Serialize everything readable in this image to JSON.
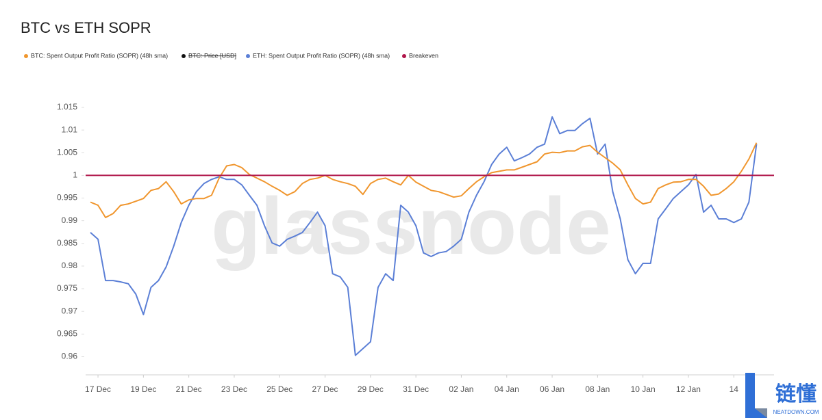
{
  "chart_data": {
    "type": "line",
    "title": "BTC vs ETH SOPR",
    "watermark": "glassnode",
    "logo": {
      "text": "链懂",
      "subtext": "NEATDOWN.COM"
    },
    "categories": [
      null,
      "17 Dec",
      null,
      null,
      null,
      null,
      null,
      "19 Dec",
      null,
      null,
      null,
      null,
      null,
      "21 Dec",
      null,
      null,
      null,
      null,
      null,
      "23 Dec",
      null,
      null,
      null,
      null,
      null,
      "25 Dec",
      null,
      null,
      null,
      null,
      null,
      "27 Dec",
      null,
      null,
      null,
      null,
      null,
      "29 Dec",
      null,
      null,
      null,
      null,
      null,
      "31 Dec",
      null,
      null,
      null,
      null,
      null,
      "02 Jan",
      null,
      null,
      null,
      null,
      null,
      "04 Jan",
      null,
      null,
      null,
      null,
      null,
      "06 Jan",
      null,
      null,
      null,
      null,
      null,
      "08 Jan",
      null,
      null,
      null,
      null,
      null,
      "10 Jan",
      null,
      null,
      null,
      null,
      null,
      "12 Jan",
      null,
      null,
      null,
      null,
      null,
      "14",
      null,
      null,
      null
    ],
    "series": [
      {
        "name": "BTC: Spent Output Profit Ratio (SOPR) (48h sma)",
        "color": "#f0962e",
        "values": [
          0.9941,
          0.9934,
          0.9907,
          0.9916,
          0.9934,
          0.9937,
          0.9943,
          0.9949,
          0.9967,
          0.9971,
          0.9986,
          0.9964,
          0.9937,
          0.9946,
          0.9949,
          0.9949,
          0.9956,
          0.9994,
          1.0021,
          1.0024,
          1.0017,
          1.0002,
          0.9994,
          0.9986,
          0.9976,
          0.9967,
          0.9956,
          0.9964,
          0.9982,
          0.9991,
          0.9994,
          1.0,
          0.9991,
          0.9986,
          0.9982,
          0.9976,
          0.9958,
          0.9982,
          0.9991,
          0.9994,
          0.9986,
          0.9979,
          1.0,
          0.9985,
          0.9976,
          0.9967,
          0.9964,
          0.9958,
          0.9952,
          0.9955,
          0.9971,
          0.9986,
          0.9997,
          1.0006,
          1.0009,
          1.0012,
          1.0012,
          1.0018,
          1.0024,
          1.003,
          1.0047,
          1.0051,
          1.005,
          1.0054,
          1.0054,
          1.0063,
          1.0066,
          1.0051,
          1.0039,
          1.0027,
          1.0012,
          0.9979,
          0.9949,
          0.9937,
          0.9941,
          0.9971,
          0.9979,
          0.9985,
          0.9986,
          0.9991,
          0.9991,
          0.9976,
          0.9956,
          0.9959,
          0.9971,
          0.9986,
          1.0009,
          1.0036,
          1.0072
        ]
      },
      {
        "name": "ETH: Spent Output Profit Ratio (SOPR) (48h sma)",
        "color": "#5b7fd6",
        "values": [
          0.9874,
          0.9859,
          0.9768,
          0.9768,
          0.9765,
          0.9761,
          0.9738,
          0.9693,
          0.9753,
          0.9768,
          0.9798,
          0.9844,
          0.9896,
          0.9934,
          0.9964,
          0.9982,
          0.9991,
          0.9997,
          0.9991,
          0.9991,
          0.9979,
          0.9956,
          0.9934,
          0.9889,
          0.9851,
          0.9844,
          0.9859,
          0.9866,
          0.9874,
          0.9896,
          0.9919,
          0.9889,
          0.9783,
          0.9776,
          0.9753,
          0.9603,
          0.9618,
          0.9633,
          0.9753,
          0.9783,
          0.9768,
          0.9934,
          0.9919,
          0.9889,
          0.9829,
          0.9821,
          0.9829,
          0.9832,
          0.9844,
          0.9859,
          0.9919,
          0.9956,
          0.9986,
          1.0024,
          1.0047,
          1.0062,
          1.0032,
          1.0039,
          1.0047,
          1.0062,
          1.0069,
          1.0129,
          1.0092,
          1.0099,
          1.0099,
          1.0114,
          1.0126,
          1.0047,
          1.0069,
          0.9964,
          0.9904,
          0.9814,
          0.9783,
          0.9806,
          0.9806,
          0.9904,
          0.9926,
          0.9949,
          0.9964,
          0.9979,
          1.0002,
          0.9919,
          0.9934,
          0.9904,
          0.9904,
          0.9896,
          0.9904,
          0.9941,
          1.0069
        ]
      }
    ],
    "hidden_series": {
      "name": "BTC: Price [USD]",
      "color": "#111111"
    },
    "breakeven": {
      "name": "Breakeven",
      "value": 1,
      "color": "#b0164a"
    },
    "ylim": [
      0.956,
      1.0175
    ],
    "yticks": [
      0.96,
      0.965,
      0.97,
      0.975,
      0.98,
      0.985,
      0.99,
      0.995,
      1,
      1.005,
      1.01,
      1.015
    ],
    "grid": false
  }
}
